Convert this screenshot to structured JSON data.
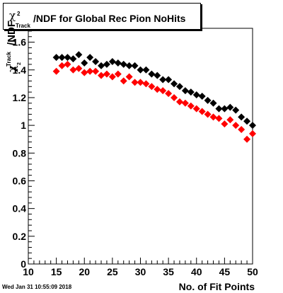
{
  "title": {
    "chi": "χ",
    "sup": "2",
    "sub": "Track",
    "text": "/NDF for Global Rec Pion NoHits"
  },
  "ylabel": {
    "chi": "χ",
    "sup": "2",
    "sub": "Track",
    "text": "/NDF"
  },
  "xlabel": "No. of Fit Points",
  "timestamp": "Wed Jan 31 10:55:09 2018",
  "chart_data": {
    "type": "scatter",
    "xlim": [
      10,
      50
    ],
    "ylim": [
      0,
      1.7
    ],
    "xticks": [
      10,
      15,
      20,
      25,
      30,
      35,
      40,
      45,
      50
    ],
    "yticks": [
      0,
      0.2,
      0.4,
      0.6,
      0.8,
      1,
      1.2,
      1.4,
      1.6
    ],
    "xtick_labels": [
      "10",
      "15",
      "20",
      "25",
      "30",
      "35",
      "40",
      "45",
      "50"
    ],
    "ytick_labels": [
      "0",
      "0.2",
      "0.4",
      "0.6",
      "0.8",
      "1",
      "1.2",
      "1.4",
      "1.6"
    ],
    "marker": "diamond",
    "series": [
      {
        "color": "#000000",
        "x": [
          15,
          16,
          17,
          18,
          19,
          20,
          21,
          22,
          23,
          24,
          25,
          26,
          27,
          28,
          29,
          30,
          31,
          32,
          33,
          34,
          35,
          36,
          37,
          38,
          39,
          40,
          41,
          42,
          43,
          44,
          45,
          46,
          47,
          48,
          49,
          50
        ],
        "y": [
          1.49,
          1.49,
          1.49,
          1.48,
          1.51,
          1.45,
          1.49,
          1.46,
          1.43,
          1.44,
          1.46,
          1.45,
          1.44,
          1.43,
          1.43,
          1.4,
          1.4,
          1.37,
          1.36,
          1.33,
          1.33,
          1.3,
          1.28,
          1.25,
          1.24,
          1.22,
          1.21,
          1.18,
          1.16,
          1.12,
          1.12,
          1.13,
          1.11,
          1.06,
          1.03,
          1.0
        ]
      },
      {
        "color": "#ff0000",
        "x": [
          15,
          16,
          17,
          18,
          19,
          20,
          21,
          22,
          23,
          24,
          25,
          26,
          27,
          28,
          29,
          30,
          31,
          32,
          33,
          34,
          35,
          36,
          37,
          38,
          39,
          40,
          41,
          42,
          43,
          44,
          45,
          46,
          47,
          48,
          49,
          50
        ],
        "y": [
          1.39,
          1.43,
          1.44,
          1.4,
          1.41,
          1.38,
          1.39,
          1.39,
          1.36,
          1.37,
          1.35,
          1.37,
          1.32,
          1.35,
          1.31,
          1.31,
          1.3,
          1.28,
          1.26,
          1.25,
          1.23,
          1.2,
          1.17,
          1.16,
          1.14,
          1.12,
          1.1,
          1.08,
          1.06,
          1.05,
          1.01,
          1.04,
          1.0,
          0.97,
          0.9,
          0.94
        ]
      }
    ]
  }
}
